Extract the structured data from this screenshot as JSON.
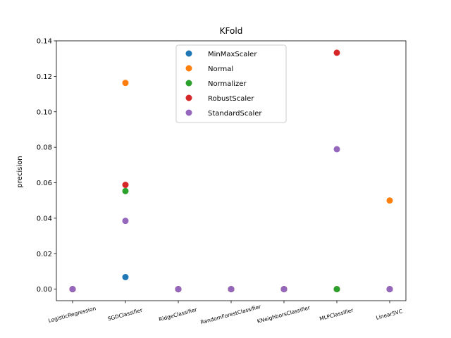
{
  "chart_data": {
    "type": "scatter",
    "title": "KFold",
    "xlabel": "",
    "ylabel": "precision",
    "ylim": [
      -0.0065,
      0.14
    ],
    "yticks": [
      0.0,
      0.02,
      0.04,
      0.06,
      0.08,
      0.1,
      0.12,
      0.14
    ],
    "ytick_labels": [
      "0.00",
      "0.02",
      "0.04",
      "0.06",
      "0.08",
      "0.10",
      "0.12",
      "0.14"
    ],
    "categories": [
      "LogisticRegression",
      "SGDClassifier",
      "RidgeClassifier",
      "RandomForestClassifier",
      "KNeighborsClassifier",
      "MLPClassifier",
      "LinearSVC"
    ],
    "grid": false,
    "legend_position": "top-center",
    "series": [
      {
        "name": "MinMaxScaler",
        "color": "#1f77b4",
        "values": [
          0.0,
          0.0068,
          0.0,
          0.0,
          0.0,
          0.0,
          0.0
        ]
      },
      {
        "name": "Normal",
        "color": "#ff7f0e",
        "values": [
          0.0,
          0.1163,
          0.0,
          0.0,
          0.0,
          0.0,
          0.05
        ]
      },
      {
        "name": "Normalizer",
        "color": "#2ca02c",
        "values": [
          0.0,
          0.0553,
          0.0,
          0.0,
          0.0,
          0.0,
          0.0
        ]
      },
      {
        "name": "RobustScaler",
        "color": "#d62728",
        "values": [
          0.0,
          0.0588,
          0.0,
          0.0,
          0.0,
          0.1333,
          0.0
        ]
      },
      {
        "name": "StandardScaler",
        "color": "#9467bd",
        "values": [
          0.0,
          0.0385,
          0.0,
          0.0,
          0.0,
          0.0789,
          0.0
        ]
      }
    ]
  }
}
